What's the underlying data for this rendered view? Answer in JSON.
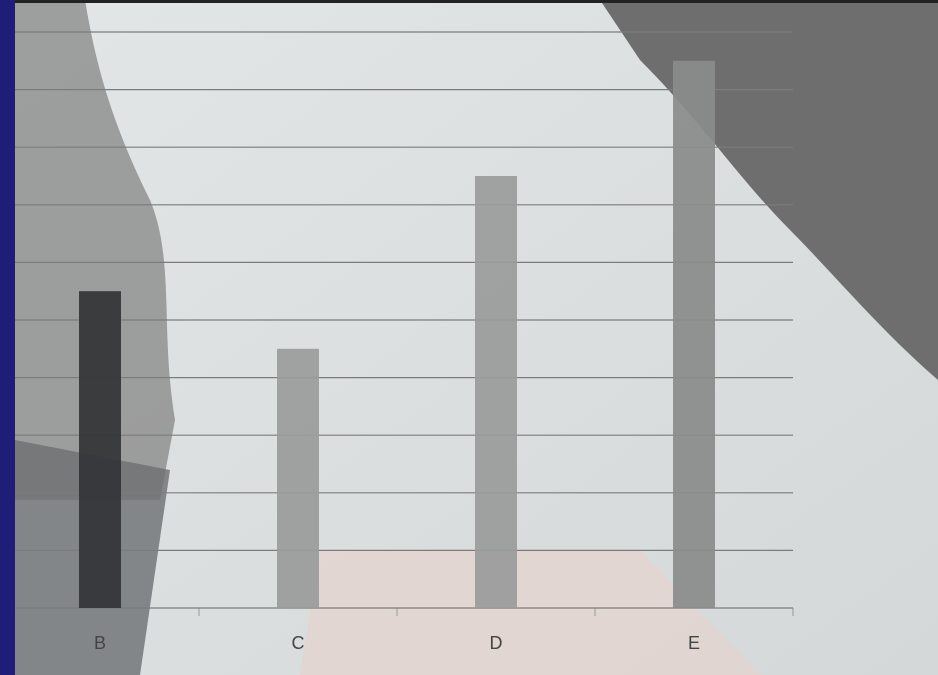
{
  "chart_data": {
    "type": "bar",
    "categories": [
      "B",
      "C",
      "D",
      "E"
    ],
    "values": [
      5.5,
      4.5,
      7.5,
      9.5
    ],
    "colors": [
      "#333436",
      "#9a9b9b",
      "#9a9b9b",
      "#8a8b8b"
    ],
    "ylim": [
      0,
      10
    ],
    "yticks": [
      0,
      1,
      2,
      3,
      4,
      5,
      6,
      7,
      8,
      9,
      10
    ],
    "grid": true
  }
}
